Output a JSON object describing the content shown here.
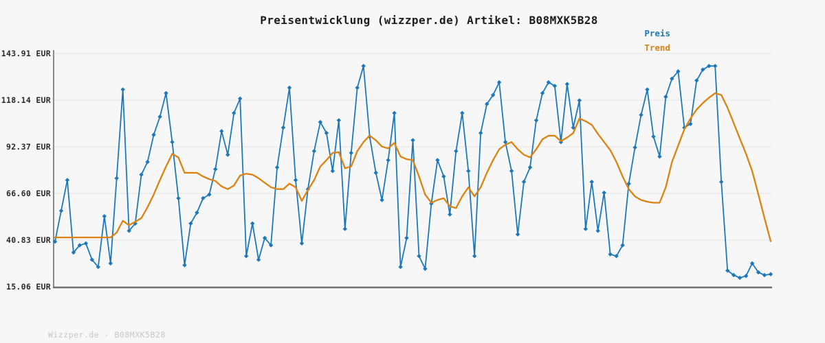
{
  "page": {
    "background": "#f7f7f7"
  },
  "header": {
    "title": "Preisentwicklung (wizzper.de) Artikel: B08MXK5B28"
  },
  "footer": {
    "watermark": "Wizzper.de - B08MXK5B28"
  },
  "chart_data": {
    "type": "line",
    "title": "Preisentwicklung (wizzper.de) Artikel: B08MXK5B28",
    "currency": "EUR",
    "ylim": [
      15.06,
      143.91
    ],
    "y_ticks": [
      143.91,
      118.14,
      92.37,
      66.6,
      40.83,
      15.06
    ],
    "y_tick_labels": [
      "143.91 EUR",
      "118.14 EUR",
      "92.37 EUR",
      "66.60 EUR",
      "40.83 EUR",
      "15.06 EUR"
    ],
    "x_tick_labels": [],
    "grid": true,
    "legend_position": "top-right",
    "axis_color": "#8a8a8a",
    "grid_color": "#e4e4e4",
    "series": [
      {
        "name": "Preis",
        "color": "#1b78bd",
        "marker": "diamond",
        "values": [
          40,
          57,
          74,
          34,
          38,
          39,
          30,
          26,
          54,
          28,
          75,
          124,
          46,
          50,
          77,
          84,
          99,
          109,
          122,
          95,
          64,
          27,
          50,
          56,
          64,
          66,
          80,
          101,
          88,
          111,
          119,
          32,
          50,
          30,
          42,
          38,
          81,
          103,
          125,
          74,
          39,
          69,
          90,
          106,
          100,
          79,
          107,
          47,
          89,
          125,
          137,
          98,
          78,
          63,
          85,
          111,
          26,
          42,
          96,
          32,
          25,
          61,
          85,
          76,
          55,
          90,
          111,
          79,
          32,
          100,
          116,
          121,
          128,
          95,
          79,
          44,
          73,
          81,
          107,
          122,
          128,
          126,
          95,
          127,
          103,
          118,
          47,
          73,
          46,
          67,
          33,
          32,
          38,
          72,
          92,
          110,
          124,
          98,
          87,
          120,
          130,
          134,
          103,
          105,
          129,
          135,
          137,
          137,
          73,
          24,
          21.5,
          20,
          21,
          28,
          23,
          21.5,
          22
        ]
      },
      {
        "name": "Trend",
        "color": "#dd810f",
        "marker": "none",
        "values": [
          42.3,
          42.3,
          42.3,
          42.3,
          42.3,
          42.3,
          42.3,
          42.3,
          42.3,
          42.3,
          45,
          51.5,
          49,
          51,
          53,
          59,
          66,
          74,
          81.5,
          88.5,
          86.5,
          78,
          78,
          78,
          76,
          74.5,
          73.5,
          70.5,
          69,
          71,
          76.5,
          77.5,
          77,
          75,
          72.5,
          70,
          69,
          69,
          72,
          70,
          62.5,
          68.5,
          74,
          81.5,
          85,
          89,
          89.5,
          80.5,
          81.5,
          90,
          95,
          98.5,
          96,
          92.5,
          91.5,
          94.5,
          87,
          85.5,
          85,
          76,
          66,
          61.5,
          63,
          64,
          59.5,
          58.5,
          65,
          70,
          65,
          70,
          78,
          85,
          91,
          93.5,
          95,
          91,
          88,
          86.5,
          91,
          96.5,
          98.5,
          98.5,
          95.5,
          97.5,
          100,
          108,
          106.5,
          104.5,
          99.5,
          95,
          90.5,
          84,
          76,
          69,
          65,
          63,
          62,
          61.5,
          61.5,
          70,
          84,
          93,
          102,
          108,
          113,
          116.5,
          119.5,
          122,
          121,
          114,
          105.5,
          97,
          88.5,
          79,
          66,
          53,
          40.2
        ]
      }
    ]
  }
}
